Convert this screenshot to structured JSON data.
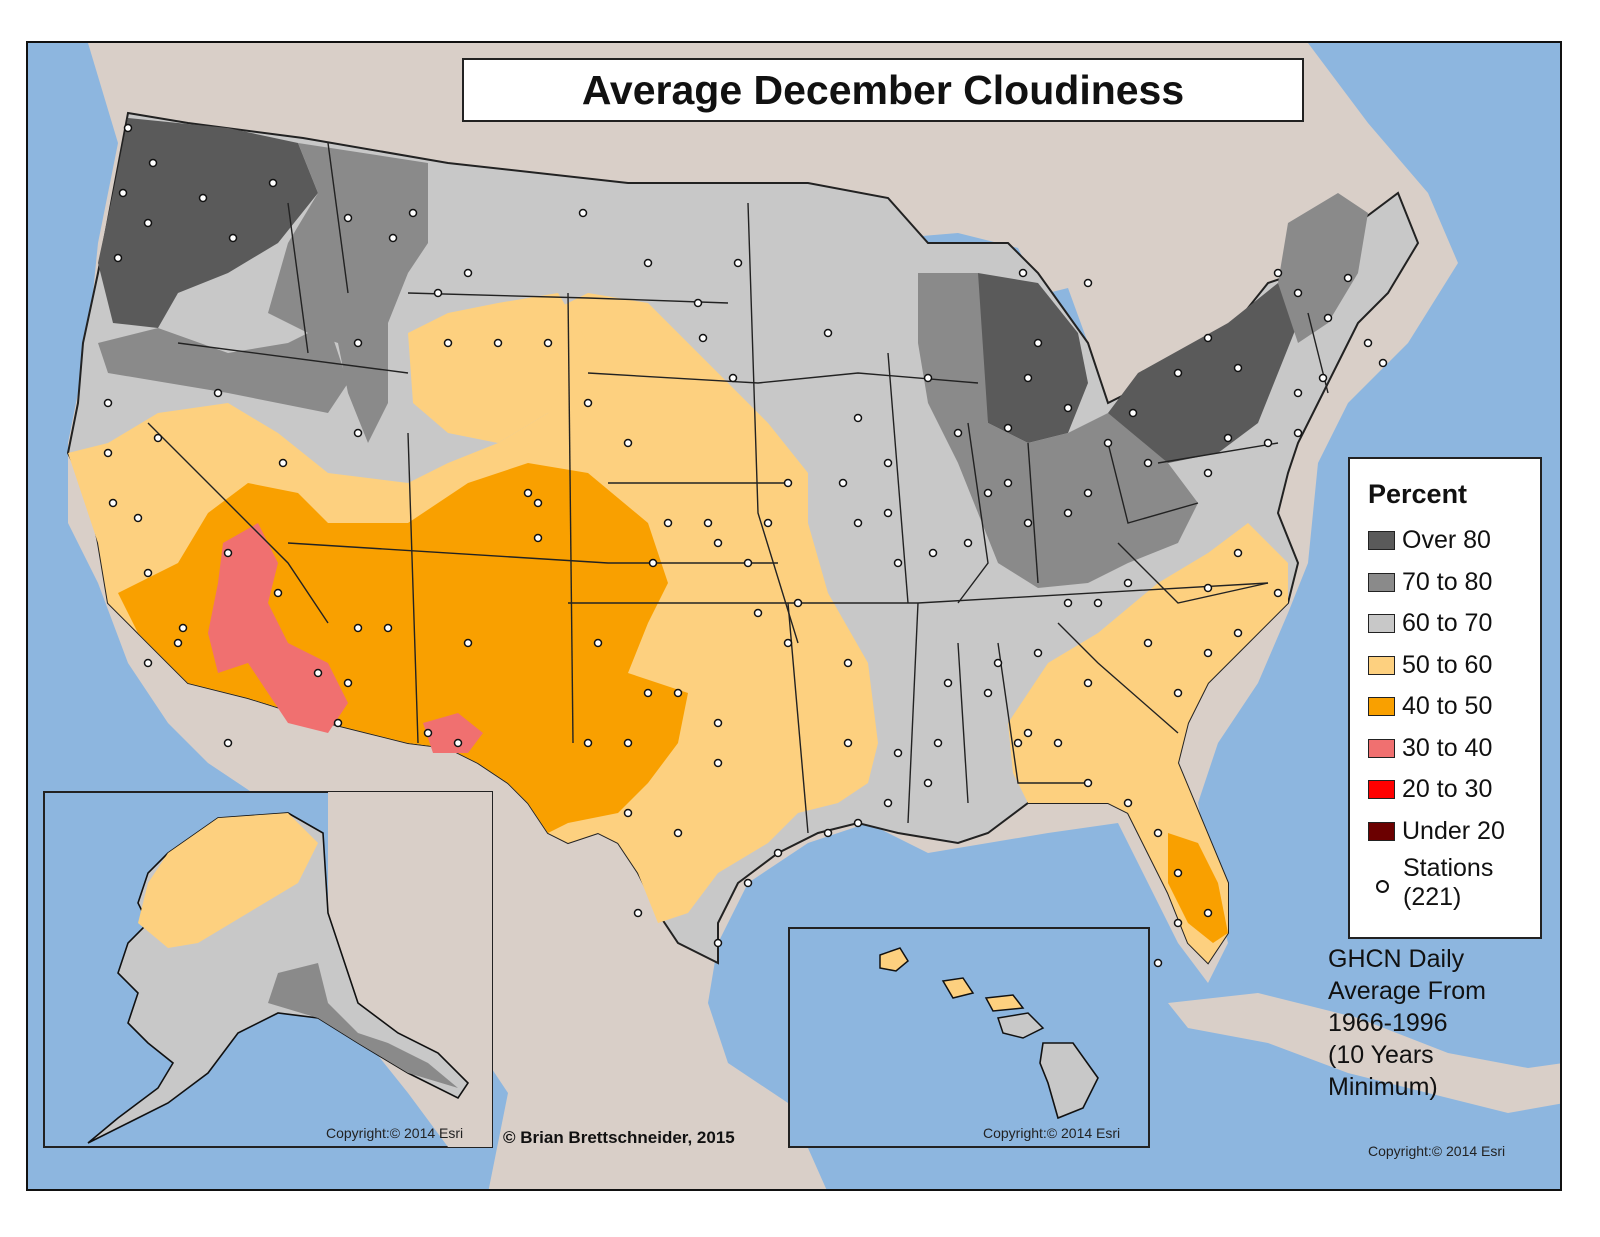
{
  "title": "Average December Cloudiness",
  "legend": {
    "title": "Percent",
    "items": [
      {
        "label": "Over 80",
        "color": "#5a5a5a"
      },
      {
        "label": "70 to 80",
        "color": "#8a8a8a"
      },
      {
        "label": "60 to 70",
        "color": "#c8c8c8"
      },
      {
        "label": "50 to 60",
        "color": "#fdd07f"
      },
      {
        "label": "40 to 50",
        "color": "#f9a000"
      },
      {
        "label": "30 to 40",
        "color": "#f07070"
      },
      {
        "label": "20 to 30",
        "color": "#ff0000"
      },
      {
        "label": "Under 20",
        "color": "#6b0000"
      }
    ],
    "stations_label": "Stations",
    "stations_count": "(221)"
  },
  "note": {
    "line1": "GHCN Daily",
    "line2": "Average From",
    "line3": "1966-1996",
    "line4": "(10 Years",
    "line5": "Minimum)"
  },
  "credit": "© Brian Brettschneider, 2015",
  "copyright": "Copyright:© 2014 Esri",
  "colors": {
    "ocean": "#8db6df",
    "land": "#d9cfc8",
    "canada": "#e3d9d3"
  }
}
